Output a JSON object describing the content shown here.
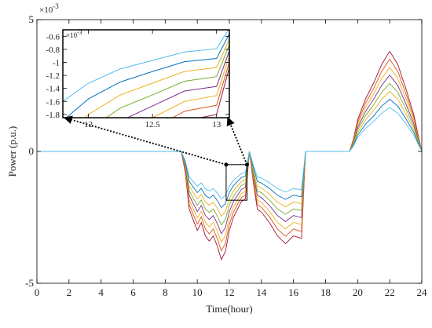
{
  "chart_data": {
    "type": "line",
    "x_label": "Time(hour)",
    "y_label": "Power (p.u.)",
    "exponent_base": "×10",
    "exponent": "-3",
    "xlim": [
      0,
      24
    ],
    "xticks": [
      0,
      2,
      4,
      6,
      8,
      10,
      12,
      14,
      16,
      18,
      20,
      22,
      24
    ],
    "ylim": [
      -5,
      5
    ],
    "yticks": [
      -5,
      0,
      5
    ],
    "x": [
      0,
      9,
      9.25,
      9.5,
      9.75,
      10,
      10.25,
      10.5,
      10.75,
      11,
      11.25,
      11.5,
      11.75,
      12,
      12.25,
      12.5,
      12.75,
      13,
      13.25,
      13.5,
      13.75,
      14,
      14.5,
      15,
      15.5,
      16,
      16.5,
      16.75,
      17,
      19.5,
      19.75,
      20,
      20.5,
      21,
      21.5,
      22,
      22.5,
      23,
      23.5,
      24
    ],
    "series": [
      {
        "color": "#a2142f",
        "values": [
          0,
          0,
          -0.8,
          -2.2,
          -2.6,
          -3.0,
          -2.7,
          -3.2,
          -3.4,
          -3.2,
          -3.6,
          -4.1,
          -3.8,
          -3.0,
          -2.5,
          -2.2,
          -1.9,
          -1.8,
          0,
          -1.2,
          -2.2,
          -2.3,
          -2.7,
          -3.2,
          -3.5,
          -3.2,
          -3.3,
          0,
          0,
          0,
          0.5,
          1.2,
          2.0,
          2.6,
          3.3,
          3.8,
          3.3,
          2.4,
          1.4,
          0
        ]
      },
      {
        "color": "#d95319",
        "values": [
          0,
          0,
          -0.74,
          -2.02,
          -2.39,
          -2.76,
          -2.48,
          -2.94,
          -3.13,
          -2.94,
          -3.31,
          -3.77,
          -3.5,
          -2.76,
          -2.3,
          -2.02,
          -1.75,
          -1.66,
          0,
          -1.1,
          -2.02,
          -2.12,
          -2.48,
          -2.94,
          -3.22,
          -2.94,
          -3.04,
          0,
          0,
          0,
          0.46,
          1.1,
          1.84,
          2.39,
          3.04,
          3.5,
          3.04,
          2.21,
          1.29,
          0
        ]
      },
      {
        "color": "#edb120",
        "values": [
          0,
          0,
          -0.67,
          -1.85,
          -2.18,
          -2.52,
          -2.27,
          -2.69,
          -2.86,
          -2.69,
          -3.02,
          -3.44,
          -3.19,
          -2.52,
          -2.1,
          -1.85,
          -1.6,
          -1.51,
          0,
          -1.01,
          -1.85,
          -1.93,
          -2.27,
          -2.69,
          -2.94,
          -2.69,
          -2.77,
          0,
          0,
          0,
          0.42,
          1.01,
          1.68,
          2.18,
          2.77,
          3.19,
          2.77,
          2.02,
          1.18,
          0
        ]
      },
      {
        "color": "#7e2f8e",
        "values": [
          0,
          0,
          -0.61,
          -1.67,
          -1.98,
          -2.28,
          -2.05,
          -2.43,
          -2.58,
          -2.43,
          -2.74,
          -3.12,
          -2.89,
          -2.28,
          -1.9,
          -1.67,
          -1.44,
          -1.37,
          0,
          -0.91,
          -1.67,
          -1.75,
          -2.05,
          -2.43,
          -2.66,
          -2.43,
          -2.51,
          0,
          0,
          0,
          0.38,
          0.91,
          1.52,
          1.98,
          2.51,
          2.89,
          2.51,
          1.82,
          1.06,
          0
        ]
      },
      {
        "color": "#77ac30",
        "values": [
          0,
          0,
          -0.54,
          -1.5,
          -1.77,
          -2.04,
          -1.84,
          -2.18,
          -2.31,
          -2.18,
          -2.45,
          -2.79,
          -2.58,
          -2.04,
          -1.7,
          -1.5,
          -1.29,
          -1.22,
          0,
          -0.82,
          -1.5,
          -1.56,
          -1.84,
          -2.18,
          -2.38,
          -2.18,
          -2.24,
          0,
          0,
          0,
          0.34,
          0.82,
          1.36,
          1.77,
          2.24,
          2.58,
          2.24,
          1.63,
          0.95,
          0
        ]
      },
      {
        "color": "#edb120",
        "values": [
          0,
          0,
          -0.48,
          -1.32,
          -1.56,
          -1.8,
          -1.62,
          -1.92,
          -2.04,
          -1.92,
          -2.16,
          -2.46,
          -2.28,
          -1.8,
          -1.5,
          -1.32,
          -1.14,
          -1.08,
          0,
          -0.72,
          -1.32,
          -1.38,
          -1.62,
          -1.92,
          -2.1,
          -1.92,
          -1.98,
          0,
          0,
          0,
          0.3,
          0.72,
          1.2,
          1.56,
          1.98,
          2.28,
          1.98,
          1.44,
          0.84,
          0
        ]
      },
      {
        "color": "#0072bd",
        "values": [
          0,
          0,
          -0.42,
          -1.14,
          -1.35,
          -1.56,
          -1.4,
          -1.66,
          -1.77,
          -1.66,
          -1.87,
          -2.13,
          -1.98,
          -1.56,
          -1.3,
          -1.14,
          -0.99,
          -0.94,
          0,
          -0.62,
          -1.14,
          -1.2,
          -1.4,
          -1.66,
          -1.82,
          -1.66,
          -1.72,
          0,
          0,
          0,
          0.26,
          0.62,
          1.04,
          1.35,
          1.72,
          1.98,
          1.72,
          1.25,
          0.73,
          0
        ]
      },
      {
        "color": "#4dbeee",
        "values": [
          0,
          0,
          -0.35,
          -0.97,
          -1.14,
          -1.32,
          -1.19,
          -1.41,
          -1.5,
          -1.41,
          -1.58,
          -1.8,
          -1.67,
          -1.32,
          -1.1,
          -0.97,
          -0.84,
          -0.79,
          0,
          -0.53,
          -0.97,
          -1.01,
          -1.19,
          -1.41,
          -1.54,
          -1.41,
          -1.45,
          0,
          0,
          0,
          0.22,
          0.53,
          0.88,
          1.14,
          1.45,
          1.67,
          1.45,
          1.06,
          0.62,
          0
        ]
      }
    ],
    "inset": {
      "xlim": [
        11.8,
        13.1
      ],
      "xticks": [
        12,
        12.5,
        13
      ],
      "ylim": [
        -1.85,
        -0.5
      ],
      "yticks": [
        -0.6,
        -0.8,
        -1,
        -1.2,
        -1.4,
        -1.6,
        -1.8
      ]
    }
  }
}
